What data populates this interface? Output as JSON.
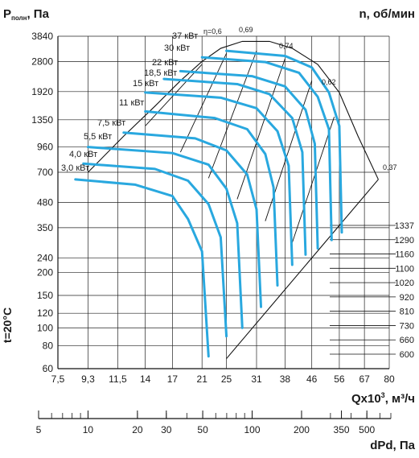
{
  "chart_data": {
    "type": "line",
    "title": "",
    "ylabel_prefix": "P",
    "ylabel_sub": "полн",
    "ylabel_suffix": ", Па",
    "rpm_axis_label": "n, об/мин",
    "xlabel_main": "Qx10",
    "xlabel_sup": "3",
    "xlabel_suffix": ", м³/ч",
    "dp_axis_label": "dPd, Па",
    "temperature_label": "t=20°C",
    "y_scale": "log",
    "x_scale": "log",
    "ylim": [
      60,
      3840
    ],
    "xlim": [
      7.5,
      80
    ],
    "y_ticks": [
      "3840",
      "2800",
      "1920",
      "1350",
      "960",
      "700",
      "480",
      "350",
      "240",
      "200",
      "150",
      "120",
      "100",
      "80",
      "60"
    ],
    "x_ticks": [
      "7,5",
      "9,3",
      "11,5",
      "14",
      "17",
      "21",
      "25",
      "31",
      "38",
      "46",
      "56",
      "67",
      "80"
    ],
    "rpm_ticks": [
      "1337",
      "1290",
      "1160",
      "1100",
      "1020",
      "920",
      "810",
      "730",
      "660",
      "600"
    ],
    "dp_ticks": [
      "5",
      "10",
      "20",
      "30",
      "50",
      "100",
      "200",
      "350",
      "500"
    ],
    "power_labels": [
      "37 кВт",
      "30 кВт",
      "22 кВт",
      "18,5 кВт",
      "15 кВт",
      "11 кВт",
      "7,5 кВт",
      "5,5 кВт",
      "4,0 кВт",
      "3,0 кВт"
    ],
    "efficiency_labels": [
      "η=0,6",
      "0,69",
      "0,74",
      "0,62",
      "0,37"
    ],
    "series": [
      {
        "values": [
          [
            25,
            3200
          ],
          [
            38,
            3000
          ],
          [
            46,
            2600
          ],
          [
            52,
            1900
          ],
          [
            56,
            1250
          ],
          [
            57,
            330
          ]
        ]
      },
      {
        "values": [
          [
            21,
            2950
          ],
          [
            33,
            2780
          ],
          [
            42,
            2430
          ],
          [
            48,
            1800
          ],
          [
            52,
            1200
          ],
          [
            53,
            300
          ]
        ]
      },
      {
        "values": [
          [
            18,
            2480
          ],
          [
            30,
            2330
          ],
          [
            38,
            2050
          ],
          [
            44,
            1530
          ],
          [
            47,
            1000
          ],
          [
            48,
            270
          ]
        ]
      },
      {
        "values": [
          [
            16,
            2250
          ],
          [
            27,
            2110
          ],
          [
            34,
            1860
          ],
          [
            40,
            1380
          ],
          [
            43,
            900
          ],
          [
            44,
            250
          ]
        ]
      },
      {
        "values": [
          [
            14,
            1900
          ],
          [
            24,
            1780
          ],
          [
            31,
            1560
          ],
          [
            36,
            1170
          ],
          [
            39,
            760
          ],
          [
            40,
            220
          ]
        ]
      },
      {
        "values": [
          [
            14,
            1500
          ],
          [
            23,
            1380
          ],
          [
            29,
            1200
          ],
          [
            33,
            880
          ],
          [
            35,
            580
          ],
          [
            36,
            170
          ]
        ]
      },
      {
        "values": [
          [
            12,
            1150
          ],
          [
            20,
            1070
          ],
          [
            25,
            920
          ],
          [
            29,
            680
          ],
          [
            31,
            440
          ],
          [
            32,
            130
          ]
        ]
      },
      {
        "values": [
          [
            9.3,
            960
          ],
          [
            17,
            890
          ],
          [
            22,
            770
          ],
          [
            25,
            570
          ],
          [
            27,
            370
          ],
          [
            28,
            100
          ]
        ]
      },
      {
        "values": [
          [
            9.0,
            780
          ],
          [
            15,
            730
          ],
          [
            19,
            630
          ],
          [
            22,
            470
          ],
          [
            24,
            310
          ],
          [
            25,
            90
          ]
        ]
      },
      {
        "values": [
          [
            8.5,
            640
          ],
          [
            13,
            600
          ],
          [
            17,
            520
          ],
          [
            19,
            390
          ],
          [
            21,
            260
          ],
          [
            22,
            70
          ]
        ]
      }
    ],
    "grid": true,
    "legend": "none"
  }
}
